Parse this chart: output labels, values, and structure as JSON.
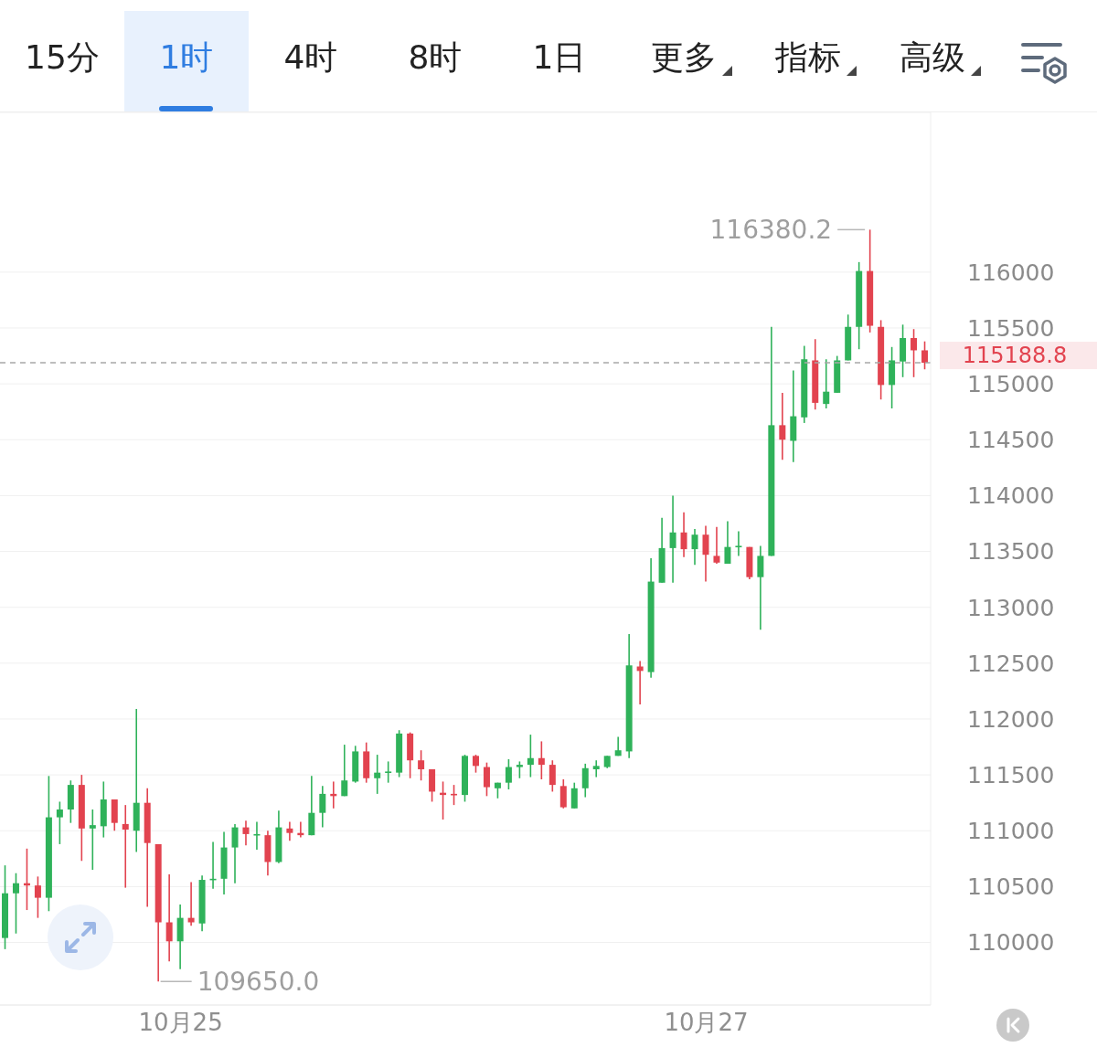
{
  "chart_data": {
    "type": "candlestick",
    "categories": [
      null,
      null,
      null,
      null,
      null,
      null,
      null,
      null,
      null,
      null,
      null,
      null,
      null,
      null,
      null,
      null,
      "10月25",
      null,
      null,
      null,
      null,
      null,
      null,
      null,
      null,
      null,
      null,
      null,
      null,
      null,
      null,
      null,
      null,
      null,
      null,
      null,
      null,
      null,
      null,
      null,
      null,
      null,
      null,
      null,
      null,
      null,
      null,
      null,
      null,
      null,
      null,
      null,
      null,
      null,
      null,
      null,
      null,
      null,
      null,
      null,
      null,
      null,
      null,
      null,
      "10月27",
      null,
      null,
      null,
      null,
      null,
      null,
      null,
      null,
      null,
      null,
      null,
      null,
      null,
      null,
      null,
      null,
      null,
      null,
      null,
      null
    ],
    "ohlc": [
      [
        110040,
        110690,
        109940,
        110440
      ],
      [
        110440,
        110620,
        110080,
        110530
      ],
      [
        110530,
        110840,
        110290,
        110510
      ],
      [
        110510,
        110590,
        110220,
        110400
      ],
      [
        110400,
        111490,
        110280,
        111120
      ],
      [
        111120,
        111260,
        110880,
        111190
      ],
      [
        111190,
        111450,
        111070,
        111410
      ],
      [
        111410,
        111500,
        110730,
        111020
      ],
      [
        111020,
        111190,
        110650,
        111050
      ],
      [
        111040,
        111440,
        110940,
        111280
      ],
      [
        111280,
        111280,
        111000,
        111070
      ],
      [
        111060,
        111230,
        110490,
        111010
      ],
      [
        111000,
        112090,
        110810,
        111250
      ],
      [
        111250,
        111380,
        110320,
        110890
      ],
      [
        110880,
        110880,
        109650.0,
        110180
      ],
      [
        110180,
        110610,
        109830,
        110010
      ],
      [
        110010,
        110340,
        109760,
        110220
      ],
      [
        110220,
        110540,
        110150,
        110180
      ],
      [
        110170,
        110600,
        110100,
        110560
      ],
      [
        110560,
        110900,
        110480,
        110570
      ],
      [
        110570,
        110990,
        110430,
        110850
      ],
      [
        110850,
        111060,
        110530,
        111030
      ],
      [
        111030,
        111090,
        110870,
        110970
      ],
      [
        110960,
        111080,
        110830,
        110970
      ],
      [
        110960,
        111000,
        110600,
        110720
      ],
      [
        110720,
        111180,
        110710,
        111030
      ],
      [
        111020,
        111080,
        110910,
        110980
      ],
      [
        110980,
        111080,
        110940,
        110960
      ],
      [
        110960,
        111490,
        110960,
        111160
      ],
      [
        111160,
        111400,
        111030,
        111330
      ],
      [
        111330,
        111440,
        111200,
        111310
      ],
      [
        111310,
        111770,
        111310,
        111450
      ],
      [
        111440,
        111760,
        111430,
        111710
      ],
      [
        111710,
        111790,
        111430,
        111470
      ],
      [
        111470,
        111680,
        111330,
        111520
      ],
      [
        111520,
        111620,
        111430,
        111530
      ],
      [
        111520,
        111900,
        111480,
        111870
      ],
      [
        111870,
        111880,
        111470,
        111630
      ],
      [
        111630,
        111720,
        111450,
        111550
      ],
      [
        111550,
        111550,
        111260,
        111350
      ],
      [
        111340,
        111440,
        111100,
        111320
      ],
      [
        111330,
        111410,
        111230,
        111320
      ],
      [
        111320,
        111680,
        111260,
        111670
      ],
      [
        111670,
        111680,
        111520,
        111580
      ],
      [
        111570,
        111610,
        111310,
        111390
      ],
      [
        111380,
        111430,
        111290,
        111430
      ],
      [
        111430,
        111640,
        111370,
        111570
      ],
      [
        111570,
        111620,
        111470,
        111590
      ],
      [
        111590,
        111860,
        111480,
        111650
      ],
      [
        111650,
        111800,
        111460,
        111590
      ],
      [
        111590,
        111630,
        111350,
        111410
      ],
      [
        111400,
        111460,
        111200,
        111210
      ],
      [
        111200,
        111430,
        111200,
        111380
      ],
      [
        111380,
        111600,
        111300,
        111560
      ],
      [
        111550,
        111630,
        111480,
        111580
      ],
      [
        111570,
        111670,
        111560,
        111670
      ],
      [
        111670,
        111840,
        111670,
        111720
      ],
      [
        111710,
        112760,
        111650,
        112480
      ],
      [
        112470,
        112520,
        112130,
        112430
      ],
      [
        112420,
        113440,
        112370,
        113230
      ],
      [
        113220,
        113800,
        113220,
        113530
      ],
      [
        113530,
        114000,
        113220,
        113670
      ],
      [
        113670,
        113850,
        113450,
        113520
      ],
      [
        113520,
        113700,
        113380,
        113650
      ],
      [
        113650,
        113730,
        113230,
        113470
      ],
      [
        113460,
        113720,
        113390,
        113400
      ],
      [
        113390,
        113770,
        113390,
        113540
      ],
      [
        113540,
        113680,
        113460,
        113550
      ],
      [
        113540,
        113540,
        113250,
        113270
      ],
      [
        113270,
        113550,
        112800,
        113460
      ],
      [
        113460,
        115510,
        113460,
        114630
      ],
      [
        114630,
        114920,
        114320,
        114500
      ],
      [
        114490,
        115120,
        114300,
        114710
      ],
      [
        114700,
        115340,
        114650,
        115220
      ],
      [
        115210,
        115400,
        114770,
        114830
      ],
      [
        114820,
        115220,
        114780,
        114930
      ],
      [
        114920,
        115250,
        114920,
        115210
      ],
      [
        115210,
        115620,
        115210,
        115510
      ],
      [
        115510,
        116090,
        115310,
        116010
      ],
      [
        116010,
        116380.2,
        115460,
        115520
      ],
      [
        115510,
        115570,
        114860,
        114990
      ],
      [
        114990,
        115330,
        114780,
        115210
      ],
      [
        115200,
        115530,
        115060,
        115410
      ],
      [
        115410,
        115490,
        115060,
        115300
      ],
      [
        115300,
        115380,
        115130,
        115188.8
      ]
    ],
    "colors": [
      "#2fb25a",
      "#2fb25a",
      "#e2434f",
      "#e2434f",
      "#2fb25a",
      "#2fb25a",
      "#2fb25a",
      "#e2434f",
      "#2fb25a",
      "#2fb25a",
      "#e2434f",
      "#e2434f",
      "#2fb25a",
      "#e2434f",
      "#e2434f",
      "#e2434f",
      "#2fb25a",
      "#e2434f",
      "#2fb25a",
      "#2fb25a",
      "#2fb25a",
      "#2fb25a",
      "#e2434f",
      "#2fb25a",
      "#e2434f",
      "#2fb25a",
      "#e2434f",
      "#e2434f",
      "#2fb25a",
      "#2fb25a",
      "#e2434f",
      "#2fb25a",
      "#2fb25a",
      "#e2434f",
      "#2fb25a",
      "#2fb25a",
      "#2fb25a",
      "#e2434f",
      "#e2434f",
      "#e2434f",
      "#e2434f",
      "#e2434f",
      "#2fb25a",
      "#e2434f",
      "#e2434f",
      "#2fb25a",
      "#2fb25a",
      "#2fb25a",
      "#2fb25a",
      "#e2434f",
      "#e2434f",
      "#e2434f",
      "#2fb25a",
      "#2fb25a",
      "#2fb25a",
      "#2fb25a",
      "#2fb25a",
      "#2fb25a",
      "#e2434f",
      "#2fb25a",
      "#2fb25a",
      "#2fb25a",
      "#e2434f",
      "#2fb25a",
      "#e2434f",
      "#e2434f",
      "#2fb25a",
      "#2fb25a",
      "#e2434f",
      "#2fb25a",
      "#2fb25a",
      "#e2434f",
      "#2fb25a",
      "#2fb25a",
      "#e2434f",
      "#2fb25a",
      "#2fb25a",
      "#2fb25a",
      "#2fb25a",
      "#e2434f",
      "#e2434f",
      "#2fb25a",
      "#2fb25a",
      "#e2434f",
      "#e2434f"
    ],
    "ylim": [
      109440,
      117430
    ],
    "yticks": [
      110000,
      110500,
      111000,
      111500,
      112000,
      112500,
      113000,
      113500,
      114000,
      114500,
      115000,
      115500,
      116000
    ],
    "grid": "y",
    "ref_lines": [
      {
        "axis": "y",
        "value": 115188.8,
        "label": "115188.8",
        "color": "#a8a8a8",
        "line_style": "dashed"
      }
    ],
    "annotations": [
      "15分",
      "1时",
      "4时",
      "8时",
      "1日",
      "更多",
      "指标",
      "高级",
      "116380.2",
      "109650.0"
    ]
  }
}
